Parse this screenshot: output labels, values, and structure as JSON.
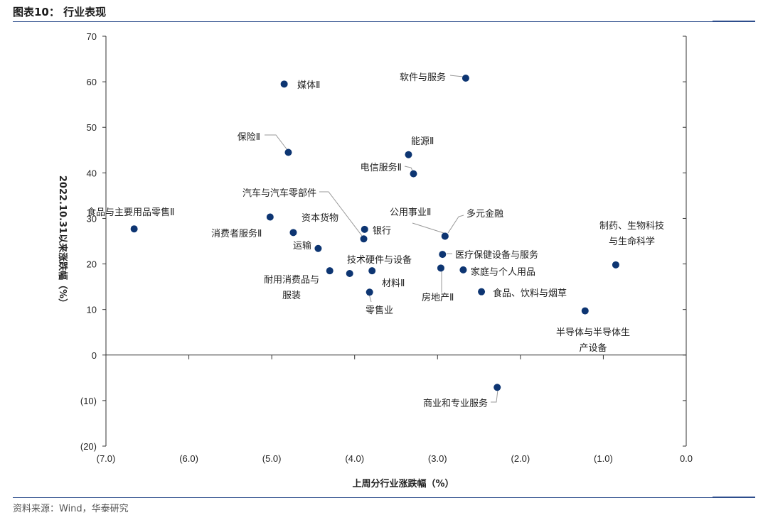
{
  "header": {
    "title": "图表10：  行业表现"
  },
  "source": "资料来源：Wind，华泰研究",
  "colors": {
    "accent": "#2d4d8c",
    "point": "#0d3572",
    "leader": "#999999"
  },
  "chart_data": {
    "type": "scatter",
    "xlabel": "上周分行业涨跌幅（%）",
    "ylabel": "2022.10.31以来涨跌幅（%）",
    "xlim": [
      -7,
      0
    ],
    "ylim": [
      -20,
      70
    ],
    "xticks": [
      -7,
      -6,
      -5,
      -4,
      -3,
      -2,
      -1,
      0
    ],
    "xtick_labels": [
      "(7.0)",
      "(6.0)",
      "(5.0)",
      "(4.0)",
      "(3.0)",
      "(2.0)",
      "(1.0)",
      "0.0"
    ],
    "yticks": [
      70,
      60,
      50,
      40,
      30,
      20,
      10,
      0,
      -10,
      -20
    ],
    "ytick_labels": [
      "70",
      "60",
      "50",
      "40",
      "30",
      "20",
      "10",
      "0",
      "(10)",
      "(20)"
    ],
    "grid": false,
    "points": [
      {
        "name": "媒体Ⅱ",
        "x": -4.85,
        "y": 59.5
      },
      {
        "name": "软件与服务",
        "x": -2.66,
        "y": 60.8
      },
      {
        "name": "保险Ⅱ",
        "x": -4.8,
        "y": 44.5
      },
      {
        "name": "能源Ⅱ",
        "x": -3.35,
        "y": 44
      },
      {
        "name": "电信服务Ⅱ",
        "x": -3.29,
        "y": 39.8
      },
      {
        "name": "汽车与汽车零部件",
        "x": -3.89,
        "y": 25.5
      },
      {
        "name": "食品与主要用品零售Ⅱ",
        "x": -6.66,
        "y": 27.7
      },
      {
        "name": "资本货物",
        "x": -5.02,
        "y": 30.3
      },
      {
        "name": "消费者服务Ⅱ",
        "x": -4.74,
        "y": 26.9
      },
      {
        "name": "银行",
        "x": -3.88,
        "y": 27.6
      },
      {
        "name": "公用事业Ⅱ",
        "x": -2.91,
        "y": 26.1
      },
      {
        "name": "多元金融",
        "x": -2.91,
        "y": 26.1
      },
      {
        "name": "运输",
        "x": -4.44,
        "y": 23.4
      },
      {
        "name": "医疗保健设备与服务",
        "x": -2.94,
        "y": 22.1
      },
      {
        "name": "技术硬件与设备",
        "x": -3.79,
        "y": 18.5
      },
      {
        "name": "耐用消费品与服装",
        "x": -4.3,
        "y": 18.5
      },
      {
        "name": "家庭与个人用品",
        "x": -2.69,
        "y": 18.7
      },
      {
        "name": "房地产Ⅱ",
        "x": -2.96,
        "y": 19.1
      },
      {
        "name": "材料Ⅱ",
        "x": -4.06,
        "y": 17.9
      },
      {
        "name": "零售业",
        "x": -3.82,
        "y": 13.8
      },
      {
        "name": "食品、饮料与烟草",
        "x": -2.47,
        "y": 13.9
      },
      {
        "name": "制药、生物科技与生命科学",
        "x": -0.85,
        "y": 19.8
      },
      {
        "name": "半导体与半导体生产设备",
        "x": -1.22,
        "y": 9.7
      },
      {
        "name": "商业和专业服务",
        "x": -2.28,
        "y": -7.1
      }
    ]
  }
}
